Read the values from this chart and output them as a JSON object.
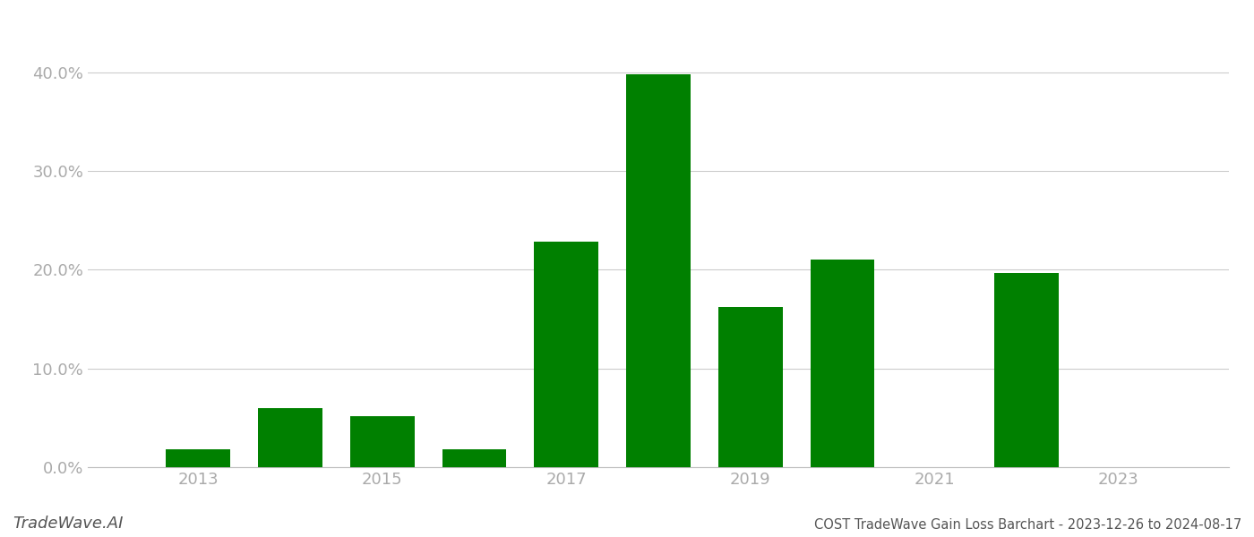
{
  "years": [
    2013,
    2014,
    2015,
    2016,
    2017,
    2018,
    2019,
    2020,
    2022
  ],
  "values": [
    0.018,
    0.06,
    0.052,
    0.018,
    0.228,
    0.398,
    0.162,
    0.21,
    0.197
  ],
  "bar_color": "#008000",
  "background_color": "#ffffff",
  "ylabel_color": "#aaaaaa",
  "xlabel_color": "#aaaaaa",
  "grid_color": "#cccccc",
  "title": "COST TradeWave Gain Loss Barchart - 2023-12-26 to 2024-08-17",
  "watermark": "TradeWave.AI",
  "ylim": [
    0,
    0.435
  ],
  "yticks": [
    0.0,
    0.1,
    0.2,
    0.3,
    0.4
  ],
  "xtick_positions": [
    2013,
    2015,
    2017,
    2019,
    2021,
    2023
  ],
  "bar_width": 0.7,
  "title_fontsize": 10.5,
  "tick_fontsize": 13,
  "watermark_fontsize": 13,
  "xlim_left": 2011.8,
  "xlim_right": 2024.2
}
